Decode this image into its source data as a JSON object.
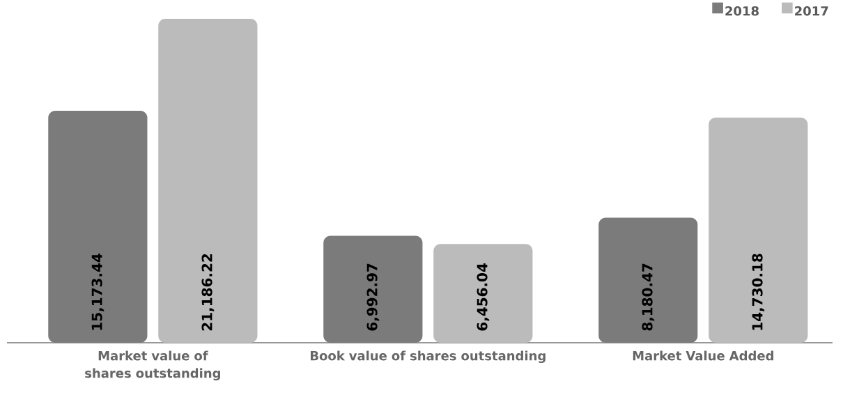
{
  "chart_data": {
    "type": "bar",
    "categories": [
      "Market value of shares outstanding",
      "Book value of shares outstanding",
      "Market Value Added"
    ],
    "series": [
      {
        "name": "2018",
        "color": "#7b7b7b",
        "values": [
          15173.44,
          6992.97,
          8180.47
        ],
        "value_labels": [
          "15,173.44",
          "6,992.97",
          "8,180.47"
        ]
      },
      {
        "name": "2017",
        "color": "#bbbbbb",
        "values": [
          21186.22,
          6456.04,
          14730.18
        ],
        "value_labels": [
          "21,186.22",
          "6,456.04",
          "14,730.18"
        ]
      }
    ],
    "legend": "top right",
    "tick_labels": "x"
  }
}
